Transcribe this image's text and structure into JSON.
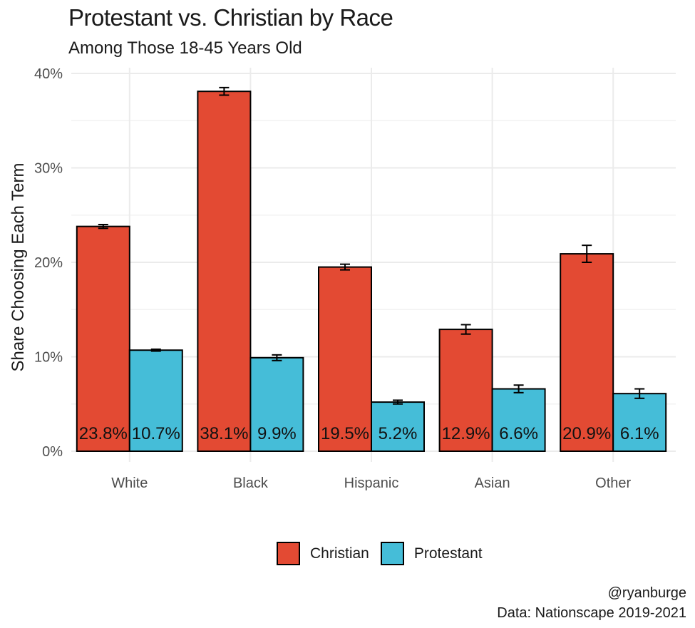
{
  "chart_data": {
    "type": "bar",
    "title": "Protestant vs. Christian by Race",
    "subtitle": "Among Those 18-45 Years Old",
    "xlabel": "",
    "ylabel": "Share Choosing Each Term",
    "ylim": [
      0,
      40
    ],
    "yticks": [
      0,
      10,
      20,
      30,
      40
    ],
    "ytick_labels": [
      "0%",
      "10%",
      "20%",
      "30%",
      "40%"
    ],
    "categories": [
      "White",
      "Black",
      "Hispanic",
      "Asian",
      "Other"
    ],
    "series": [
      {
        "name": "Christian",
        "color": "#E34A33",
        "values": [
          23.8,
          38.1,
          19.5,
          12.9,
          20.9
        ],
        "labels": [
          "23.8%",
          "38.1%",
          "19.5%",
          "12.9%",
          "20.9%"
        ],
        "error_low": [
          23.6,
          37.7,
          19.2,
          12.4,
          20.0
        ],
        "error_high": [
          24.0,
          38.5,
          19.8,
          13.4,
          21.8
        ]
      },
      {
        "name": "Protestant",
        "color": "#45BDD8",
        "values": [
          10.7,
          9.9,
          5.2,
          6.6,
          6.1
        ],
        "labels": [
          "10.7%",
          "9.9%",
          "5.2%",
          "6.6%",
          "6.1%"
        ],
        "error_low": [
          10.6,
          9.6,
          5.0,
          6.2,
          5.6
        ],
        "error_high": [
          10.8,
          10.2,
          5.4,
          7.0,
          6.6
        ]
      }
    ],
    "grid": true,
    "legend_position": "bottom"
  },
  "caption": {
    "line1": "@ryanburge",
    "line2": "Data: Nationscape 2019-2021"
  }
}
